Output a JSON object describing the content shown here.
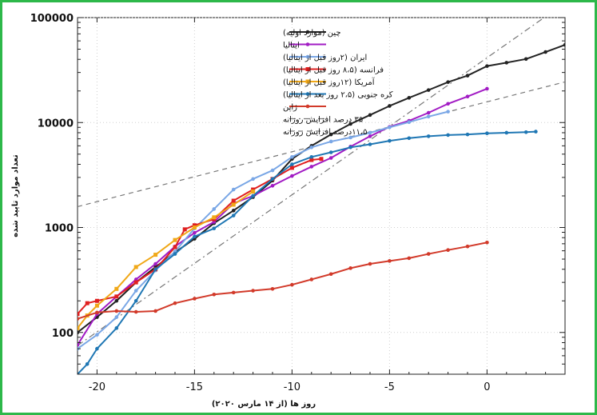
{
  "chart_data": {
    "type": "line",
    "xlabel": "روز ها (از ۱۴ مارس ۲۰۲۰)",
    "ylabel": "تعداد موارد تایید شده",
    "xlim": [
      -21,
      4
    ],
    "ylim": [
      40,
      100000
    ],
    "yscale": "log",
    "grid": true,
    "legend_position": "top-right",
    "x_ticks": [
      -20,
      -15,
      -10,
      -5,
      0
    ],
    "x_tick_labels": [
      "-20",
      "-15",
      "-10",
      "-5",
      "0"
    ],
    "y_ticks": [
      100,
      1000,
      10000,
      100000
    ],
    "y_tick_labels": [
      "100",
      "1000",
      "10000",
      "100000"
    ],
    "series": [
      {
        "name": "چین (موارد اولیه)",
        "color": "#222222",
        "style": "solid",
        "marker": "dot",
        "points": [
          [
            -21,
            100
          ],
          [
            -20,
            140
          ],
          [
            -19,
            200
          ],
          [
            -18,
            300
          ],
          [
            -17,
            420
          ],
          [
            -16,
            580
          ],
          [
            -15,
            780
          ],
          [
            -14,
            1100
          ],
          [
            -13,
            1450
          ],
          [
            -12,
            1950
          ],
          [
            -11,
            2800
          ],
          [
            -10,
            4500
          ],
          [
            -9,
            6000
          ],
          [
            -8,
            7700
          ],
          [
            -7,
            9700
          ],
          [
            -6,
            11800
          ],
          [
            -5,
            14400
          ],
          [
            -4,
            17200
          ],
          [
            -3,
            20400
          ],
          [
            -2,
            24300
          ],
          [
            -1,
            28000
          ],
          [
            0,
            34500
          ],
          [
            1,
            37200
          ],
          [
            2,
            40300
          ],
          [
            3,
            47000
          ],
          [
            4,
            55000
          ]
        ]
      },
      {
        "name": "ایتالیا",
        "color": "#a21cc4",
        "style": "solid",
        "marker": "dot",
        "points": [
          [
            -21,
            76
          ],
          [
            -20,
            150
          ],
          [
            -19,
            220
          ],
          [
            -18,
            320
          ],
          [
            -17,
            450
          ],
          [
            -16,
            660
          ],
          [
            -15,
            890
          ],
          [
            -14,
            1130
          ],
          [
            -13,
            1700
          ],
          [
            -12,
            2000
          ],
          [
            -11,
            2500
          ],
          [
            -10,
            3100
          ],
          [
            -9,
            3800
          ],
          [
            -8,
            4600
          ],
          [
            -7,
            5900
          ],
          [
            -6,
            7400
          ],
          [
            -5,
            9100
          ],
          [
            -4,
            10400
          ],
          [
            -3,
            12400
          ],
          [
            -2,
            15100
          ],
          [
            -1,
            17700
          ],
          [
            0,
            21000
          ]
        ]
      },
      {
        "name": "ایران  (۲روز قبل از ایتالیا)",
        "color": "#7aa7e6",
        "style": "solid",
        "marker": "dot",
        "points": [
          [
            -21,
            70
          ],
          [
            -20,
            95
          ],
          [
            -19,
            140
          ],
          [
            -18,
            250
          ],
          [
            -17,
            390
          ],
          [
            -16,
            590
          ],
          [
            -15,
            980
          ],
          [
            -14,
            1500
          ],
          [
            -13,
            2300
          ],
          [
            -12,
            2900
          ],
          [
            -11,
            3500
          ],
          [
            -10,
            4700
          ],
          [
            -9,
            5800
          ],
          [
            -8,
            6600
          ],
          [
            -7,
            7200
          ],
          [
            -6,
            8000
          ],
          [
            -5,
            9000
          ],
          [
            -4,
            10100
          ],
          [
            -3,
            11400
          ],
          [
            -2,
            12700
          ]
        ]
      },
      {
        "name": "فرانسه (۸،۵ روز قبل از ایتالیا)",
        "color": "#e02020",
        "style": "solid",
        "marker": "square",
        "points": [
          [
            -21,
            150
          ],
          [
            -20.5,
            190
          ],
          [
            -20,
            200
          ],
          [
            -19,
            220
          ],
          [
            -18,
            300
          ],
          [
            -17,
            400
          ],
          [
            -16,
            650
          ],
          [
            -15.5,
            960
          ],
          [
            -15,
            1050
          ],
          [
            -14,
            1200
          ],
          [
            -13,
            1800
          ],
          [
            -12,
            2300
          ],
          [
            -11,
            2900
          ],
          [
            -10,
            3700
          ],
          [
            -9,
            4400
          ],
          [
            -8.5,
            4500
          ]
        ]
      },
      {
        "name": "آمریکا (۱۲روز قبل از ایتالیا)",
        "color": "#f0a818",
        "style": "solid",
        "marker": "square",
        "points": [
          [
            -21,
            110
          ],
          [
            -20.5,
            145
          ],
          [
            -20,
            180
          ],
          [
            -19,
            260
          ],
          [
            -18,
            420
          ],
          [
            -17,
            550
          ],
          [
            -16,
            760
          ],
          [
            -15,
            1000
          ],
          [
            -14,
            1250
          ],
          [
            -13,
            1650
          ],
          [
            -12,
            2200
          ]
        ]
      },
      {
        "name": "کره جنوبی (۲،۵ روز بعد از ایتالیا)",
        "color": "#1f77b4",
        "style": "solid",
        "marker": "dot",
        "points": [
          [
            -21,
            40
          ],
          [
            -20.5,
            50
          ],
          [
            -20,
            70
          ],
          [
            -19,
            110
          ],
          [
            -18,
            200
          ],
          [
            -17,
            400
          ],
          [
            -16,
            560
          ],
          [
            -15,
            820
          ],
          [
            -14,
            980
          ],
          [
            -13,
            1300
          ],
          [
            -12,
            2000
          ],
          [
            -11,
            2900
          ],
          [
            -10,
            4000
          ],
          [
            -9,
            4700
          ],
          [
            -8,
            5200
          ],
          [
            -7,
            5800
          ],
          [
            -6,
            6200
          ],
          [
            -5,
            6700
          ],
          [
            -4,
            7100
          ],
          [
            -3,
            7400
          ],
          [
            -2,
            7600
          ],
          [
            -1,
            7700
          ],
          [
            0,
            7900
          ],
          [
            1,
            8000
          ],
          [
            2,
            8100
          ],
          [
            2.5,
            8200
          ]
        ]
      },
      {
        "name": "ژاپن",
        "color": "#d23a2a",
        "style": "solid",
        "marker": "dot",
        "points": [
          [
            -21,
            135
          ],
          [
            -20,
            155
          ],
          [
            -19,
            160
          ],
          [
            -18,
            157
          ],
          [
            -17,
            160
          ],
          [
            -16,
            190
          ],
          [
            -15,
            210
          ],
          [
            -14,
            230
          ],
          [
            -13,
            240
          ],
          [
            -12,
            250
          ],
          [
            -11,
            260
          ],
          [
            -10,
            285
          ],
          [
            -9,
            320
          ],
          [
            -8,
            360
          ],
          [
            -7,
            410
          ],
          [
            -6,
            450
          ],
          [
            -5,
            480
          ],
          [
            -4,
            510
          ],
          [
            -3,
            560
          ],
          [
            -2,
            610
          ],
          [
            -1,
            660
          ],
          [
            0,
            720
          ]
        ]
      },
      {
        "name": "۳۵ درصد افزایش روزانه",
        "color": "#777777",
        "style": "dashdot",
        "marker": "none",
        "points": [
          [
            -21,
            75
          ],
          [
            4,
            138000
          ]
        ]
      },
      {
        "name": "۱۱،۵درصد افزایش روزانه",
        "color": "#777777",
        "style": "dashed",
        "marker": "none",
        "points": [
          [
            -21,
            1580
          ],
          [
            4,
            24400
          ]
        ]
      }
    ]
  }
}
